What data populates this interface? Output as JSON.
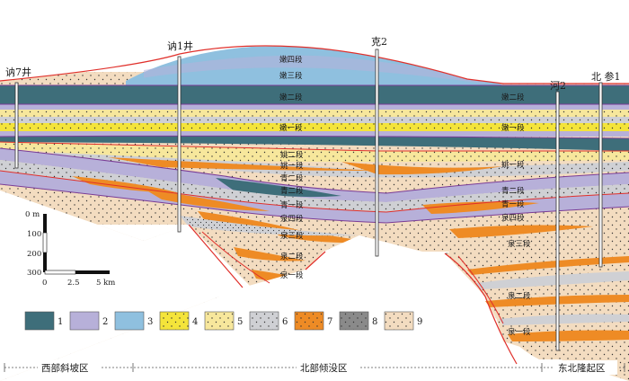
{
  "wells": [
    {
      "id": "na7",
      "label": "讷7井"
    },
    {
      "id": "na1",
      "label": "讷1井"
    },
    {
      "id": "ke2",
      "label": "克2"
    },
    {
      "id": "he2",
      "label": "河2"
    },
    {
      "id": "bc1",
      "label": "北 参1"
    }
  ],
  "formation_labels": [
    "嫩四段",
    "嫩三段",
    "嫩二段",
    "嫩二段",
    "嫩一段",
    "姚二段",
    "姚一段",
    "青二段",
    "青二段",
    "青一段",
    "泉四段",
    "泉三段",
    "泉二段",
    "泉一段",
    "嫩一段",
    "姚一段",
    "青二段",
    "青一段",
    "泉四段",
    "泉三段",
    "泉二段",
    "泉一段"
  ],
  "scale_bar": {
    "vertical_ticks": [
      "0 m",
      "100",
      "200",
      "300"
    ],
    "horizontal_ticks": [
      "0",
      "2.5",
      "5 km"
    ]
  },
  "legend": {
    "items": [
      {
        "num": "1",
        "color": "#3e6e7a",
        "pattern": "none"
      },
      {
        "num": "2",
        "color": "#b7b0d9",
        "pattern": "none"
      },
      {
        "num": "3",
        "color": "#8fc0df",
        "pattern": "none"
      },
      {
        "num": "4",
        "color": "#f4e43a",
        "pattern": "dots"
      },
      {
        "num": "5",
        "color": "#f7e79c",
        "pattern": "dots"
      },
      {
        "num": "6",
        "color": "#cfd0d4",
        "pattern": "dots"
      },
      {
        "num": "7",
        "color": "#ee8b25",
        "pattern": "dots"
      },
      {
        "num": "8",
        "color": "#8a8a8a",
        "pattern": "dots"
      },
      {
        "num": "9",
        "color": "#f3dcc0",
        "pattern": "dots"
      }
    ]
  },
  "zones": [
    "西部斜坡区",
    "北部倾没区",
    "东北隆起区"
  ],
  "colors": {
    "mudstone_dark": "#3e6e7a",
    "lavender": "#b7b0d9",
    "light_blue": "#8fc0df",
    "yellow": "#f4e43a",
    "pale_yellow": "#f7e79c",
    "grey": "#cfd0d4",
    "orange": "#ee8b25",
    "dark_grey": "#8a8a8a",
    "sand": "#f3dcc0",
    "boundary_red": "#e0302b",
    "boundary_purple": "#7a3c96"
  }
}
